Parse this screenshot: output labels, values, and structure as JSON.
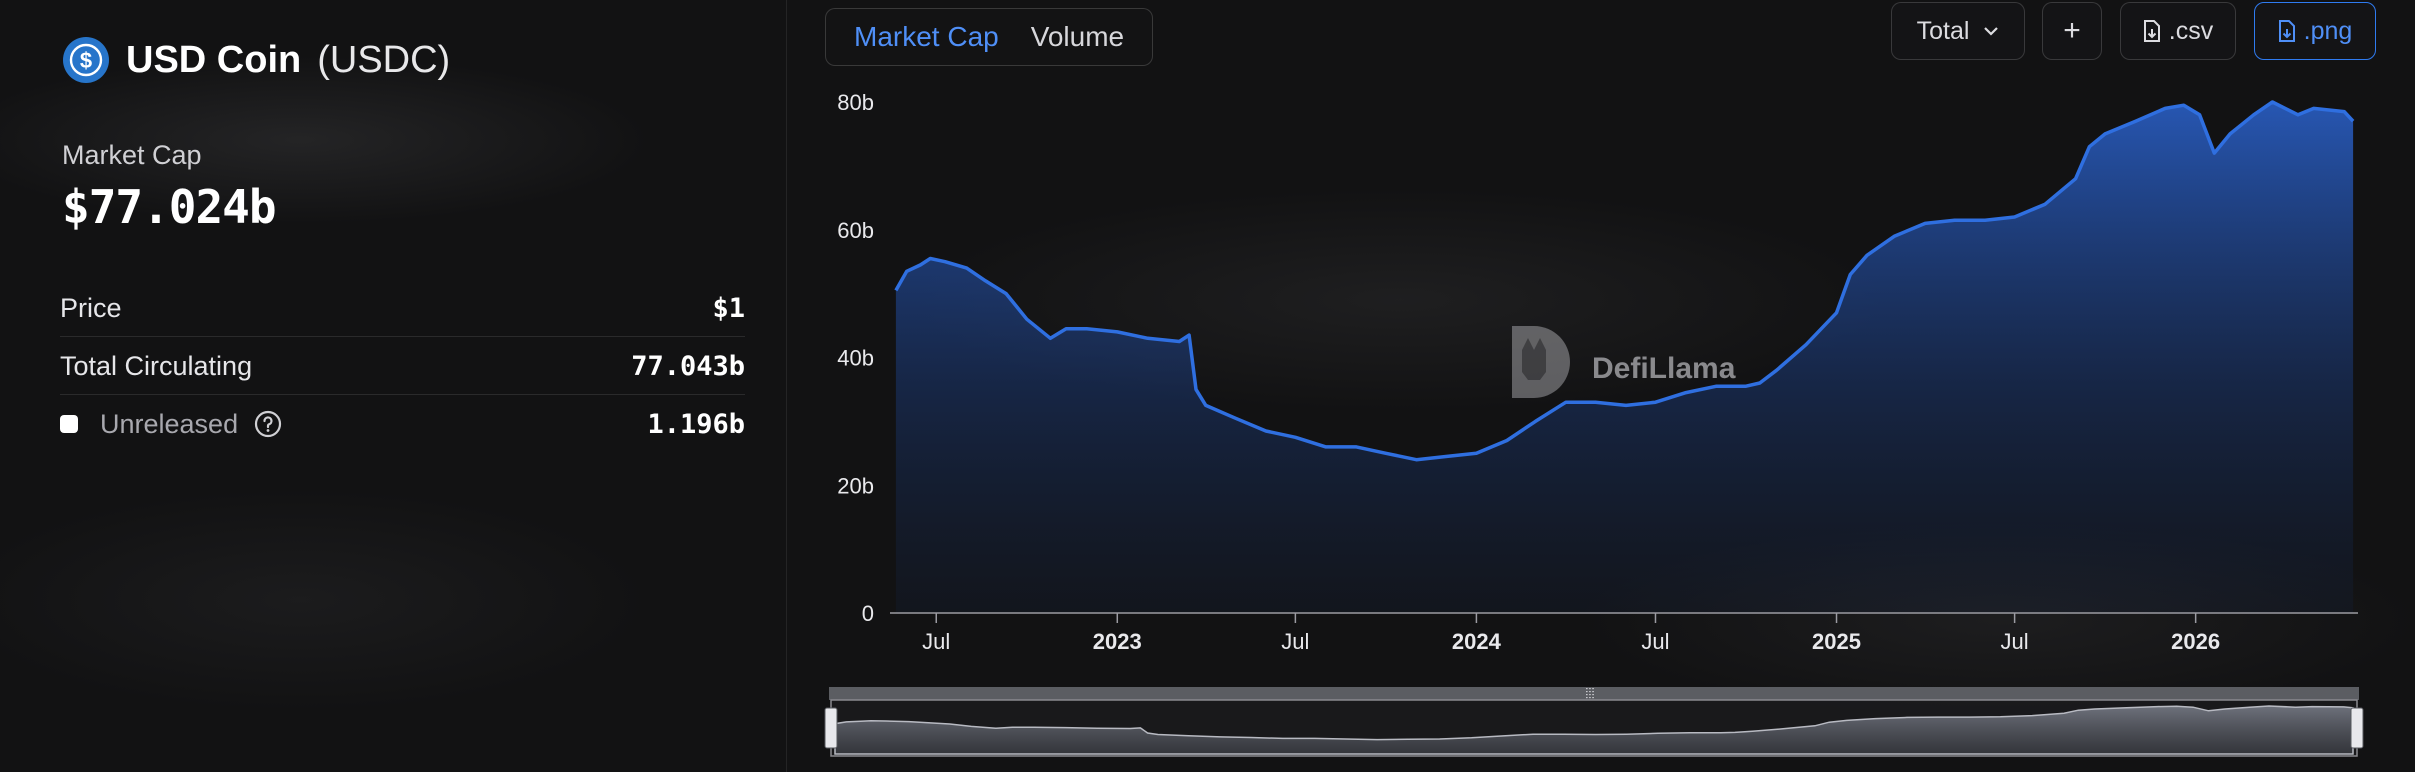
{
  "token": {
    "name": "USD Coin",
    "symbol": "(USDC)"
  },
  "market_cap": {
    "label": "Market Cap",
    "value": "$77.024b"
  },
  "stats": [
    {
      "label": "Price",
      "value": "$1"
    },
    {
      "label": "Total Circulating",
      "value": "77.043b"
    },
    {
      "label": "Unreleased",
      "value": "1.196b"
    }
  ],
  "tabs": [
    "Market Cap",
    "Volume"
  ],
  "controls": {
    "dropdown": "Total",
    "add": "+",
    "csv": ".csv",
    "png": ".png"
  },
  "watermark": "DefiLlama",
  "colors": {
    "line": "#2f6fe0",
    "accent": "#4f8ff7",
    "background": "#121213"
  },
  "chart_data": {
    "type": "area",
    "title": "",
    "xlabel": "",
    "ylabel": "",
    "y_unit": "b",
    "ylim": [
      0,
      80
    ],
    "y_ticks": [
      {
        "value": 0,
        "label": "0"
      },
      {
        "value": 20,
        "label": "20b"
      },
      {
        "value": 40,
        "label": "40b"
      },
      {
        "value": 60,
        "label": "60b"
      },
      {
        "value": 80,
        "label": "80b"
      }
    ],
    "x_ticks": [
      {
        "date": "2022-07-01",
        "label": "Jul",
        "bold": false
      },
      {
        "date": "2023-01-01",
        "label": "2023",
        "bold": true
      },
      {
        "date": "2023-07-01",
        "label": "Jul",
        "bold": false
      },
      {
        "date": "2024-01-01",
        "label": "2024",
        "bold": true
      },
      {
        "date": "2024-07-01",
        "label": "Jul",
        "bold": false
      },
      {
        "date": "2025-01-01",
        "label": "2025",
        "bold": true
      },
      {
        "date": "2025-07-01",
        "label": "Jul",
        "bold": false
      },
      {
        "date": "2026-01-01",
        "label": "2026",
        "bold": true
      }
    ],
    "xlim": [
      "2022-05-15",
      "2026-06-15"
    ],
    "grid": false,
    "series": [
      {
        "points": [
          [
            "2022-05-21",
            50.5
          ],
          [
            "2022-06-01",
            53.5
          ],
          [
            "2022-06-15",
            54.5
          ],
          [
            "2022-06-25",
            55.5
          ],
          [
            "2022-07-10",
            55.0
          ],
          [
            "2022-08-01",
            54.0
          ],
          [
            "2022-08-20",
            52.0
          ],
          [
            "2022-09-10",
            50.0
          ],
          [
            "2022-10-01",
            46.0
          ],
          [
            "2022-10-25",
            43.0
          ],
          [
            "2022-11-10",
            44.5
          ],
          [
            "2022-12-01",
            44.5
          ],
          [
            "2023-01-01",
            44.0
          ],
          [
            "2023-02-01",
            43.0
          ],
          [
            "2023-03-05",
            42.5
          ],
          [
            "2023-03-15",
            43.5
          ],
          [
            "2023-03-22",
            35.0
          ],
          [
            "2023-04-01",
            32.5
          ],
          [
            "2023-05-01",
            30.5
          ],
          [
            "2023-06-01",
            28.5
          ],
          [
            "2023-07-01",
            27.5
          ],
          [
            "2023-08-01",
            26.0
          ],
          [
            "2023-09-01",
            26.0
          ],
          [
            "2023-10-01",
            25.0
          ],
          [
            "2023-11-01",
            24.0
          ],
          [
            "2023-12-01",
            24.5
          ],
          [
            "2024-01-01",
            25.0
          ],
          [
            "2024-02-01",
            27.0
          ],
          [
            "2024-03-01",
            30.0
          ],
          [
            "2024-04-01",
            33.0
          ],
          [
            "2024-05-01",
            33.0
          ],
          [
            "2024-06-01",
            32.5
          ],
          [
            "2024-07-01",
            33.0
          ],
          [
            "2024-08-01",
            34.5
          ],
          [
            "2024-09-01",
            35.5
          ],
          [
            "2024-10-01",
            35.5
          ],
          [
            "2024-10-15",
            36.0
          ],
          [
            "2024-11-01",
            38.0
          ],
          [
            "2024-12-01",
            42.0
          ],
          [
            "2025-01-01",
            47.0
          ],
          [
            "2025-01-15",
            53.0
          ],
          [
            "2025-02-01",
            56.0
          ],
          [
            "2025-03-01",
            59.0
          ],
          [
            "2025-04-01",
            61.0
          ],
          [
            "2025-05-01",
            61.5
          ],
          [
            "2025-06-01",
            61.5
          ],
          [
            "2025-07-01",
            62.0
          ],
          [
            "2025-08-01",
            64.0
          ],
          [
            "2025-09-01",
            68.0
          ],
          [
            "2025-09-15",
            73.0
          ],
          [
            "2025-10-01",
            75.0
          ],
          [
            "2025-11-01",
            77.0
          ],
          [
            "2025-12-01",
            79.0
          ],
          [
            "2025-12-20",
            79.5
          ],
          [
            "2026-01-05",
            78.0
          ],
          [
            "2026-01-20",
            72.0
          ],
          [
            "2026-02-05",
            75.0
          ],
          [
            "2026-03-01",
            78.0
          ],
          [
            "2026-03-20",
            80.0
          ],
          [
            "2026-04-15",
            78.0
          ],
          [
            "2026-05-01",
            79.0
          ],
          [
            "2026-06-01",
            78.5
          ],
          [
            "2026-06-10",
            77.0
          ]
        ]
      }
    ]
  }
}
